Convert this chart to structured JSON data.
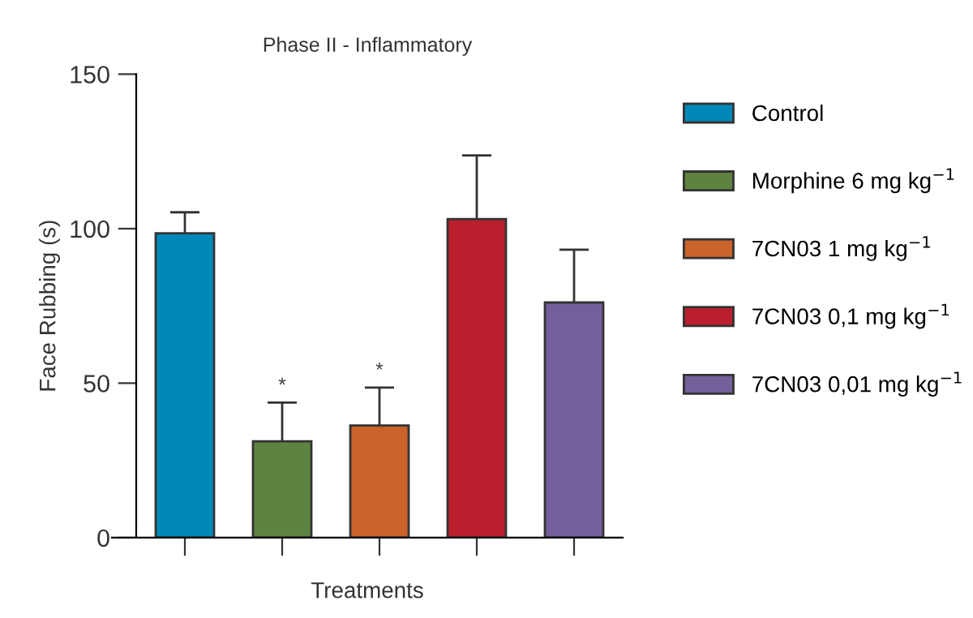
{
  "chart_data": {
    "type": "bar",
    "title": "Phase II - Inflammatory",
    "xlabel": "Treatments",
    "ylabel": "Face Rubbing (s)",
    "categories": [
      null,
      null,
      null,
      null,
      null
    ],
    "series": [
      {
        "name": "Control",
        "color": "#0088b8",
        "values": [
          98.5,
          null,
          null,
          null,
          null
        ],
        "errors": [
          [
            98.5,
            105.3
          ],
          null,
          null,
          null,
          null
        ]
      },
      {
        "name": "Morphine 6 mg kg$^{−1}$",
        "color": "#5e8340",
        "values": [
          null,
          31.2,
          null,
          null,
          null
        ],
        "errors": [
          null,
          [
            31.2,
            43.7
          ],
          null,
          null,
          null
        ],
        "value_labels": [
          null,
          "*",
          null,
          null,
          null
        ]
      },
      {
        "name": "7CN03 1 mg kg$^{−1}$",
        "color": "#c9632a",
        "values": [
          null,
          null,
          36.3,
          null,
          null
        ],
        "errors": [
          null,
          null,
          [
            36.3,
            48.6
          ],
          null,
          null
        ],
        "value_labels": [
          null,
          null,
          "*",
          null,
          null
        ]
      },
      {
        "name": "7CN03 0,1 mg kg$^{−1}$",
        "color": "#bb1f2e",
        "values": [
          null,
          null,
          null,
          103.1,
          null
        ],
        "errors": [
          null,
          null,
          null,
          [
            103.1,
            123.7
          ],
          null
        ]
      },
      {
        "name": "7CN03 0,01 mg kg$^{−1}$",
        "color": "#735f99",
        "values": [
          null,
          null,
          null,
          null,
          76.1
        ],
        "errors": [
          null,
          null,
          null,
          null,
          [
            76.1,
            93.2
          ]
        ]
      }
    ],
    "ylim": [
      0,
      150
    ],
    "yticks": [
      0,
      50,
      100,
      150
    ],
    "legend": "right",
    "grid": false
  }
}
